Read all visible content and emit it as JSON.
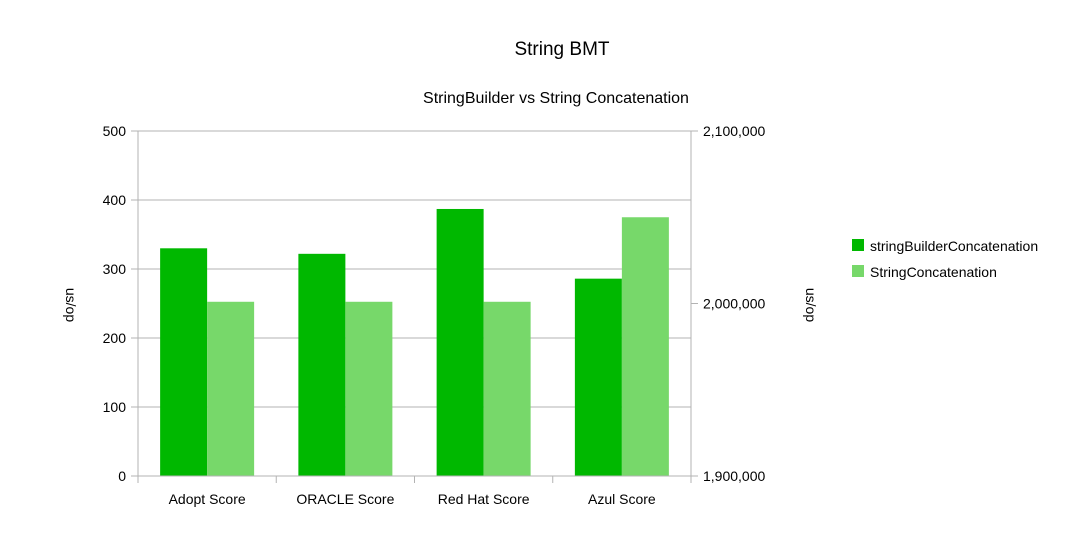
{
  "chart_data": {
    "type": "bar",
    "title": "String  BMT",
    "subtitle": "StringBuilder vs String Concatenation",
    "categories": [
      "Adopt Score",
      "ORACLE Score",
      "Red Hat Score",
      "Azul Score"
    ],
    "series": [
      {
        "name": "stringBuilderConcatenation",
        "axis": "left",
        "color": "#00b800",
        "values": [
          330,
          322,
          387,
          286
        ]
      },
      {
        "name": "StringConcatenation",
        "axis": "right",
        "color": "#77d86a",
        "values": [
          2001000,
          2001000,
          2001000,
          2050000
        ]
      }
    ],
    "ylabel": "us/op",
    "ylim": [
      0,
      500
    ],
    "yticks": [
      "0",
      "100",
      "200",
      "300",
      "400",
      "500"
    ],
    "y2label": "us/op",
    "y2lim": [
      1900000,
      2100000
    ],
    "y2ticks": [
      "1,900,000",
      "2,000,000",
      "2,100,000"
    ],
    "grid": true,
    "legend_position": "right"
  }
}
